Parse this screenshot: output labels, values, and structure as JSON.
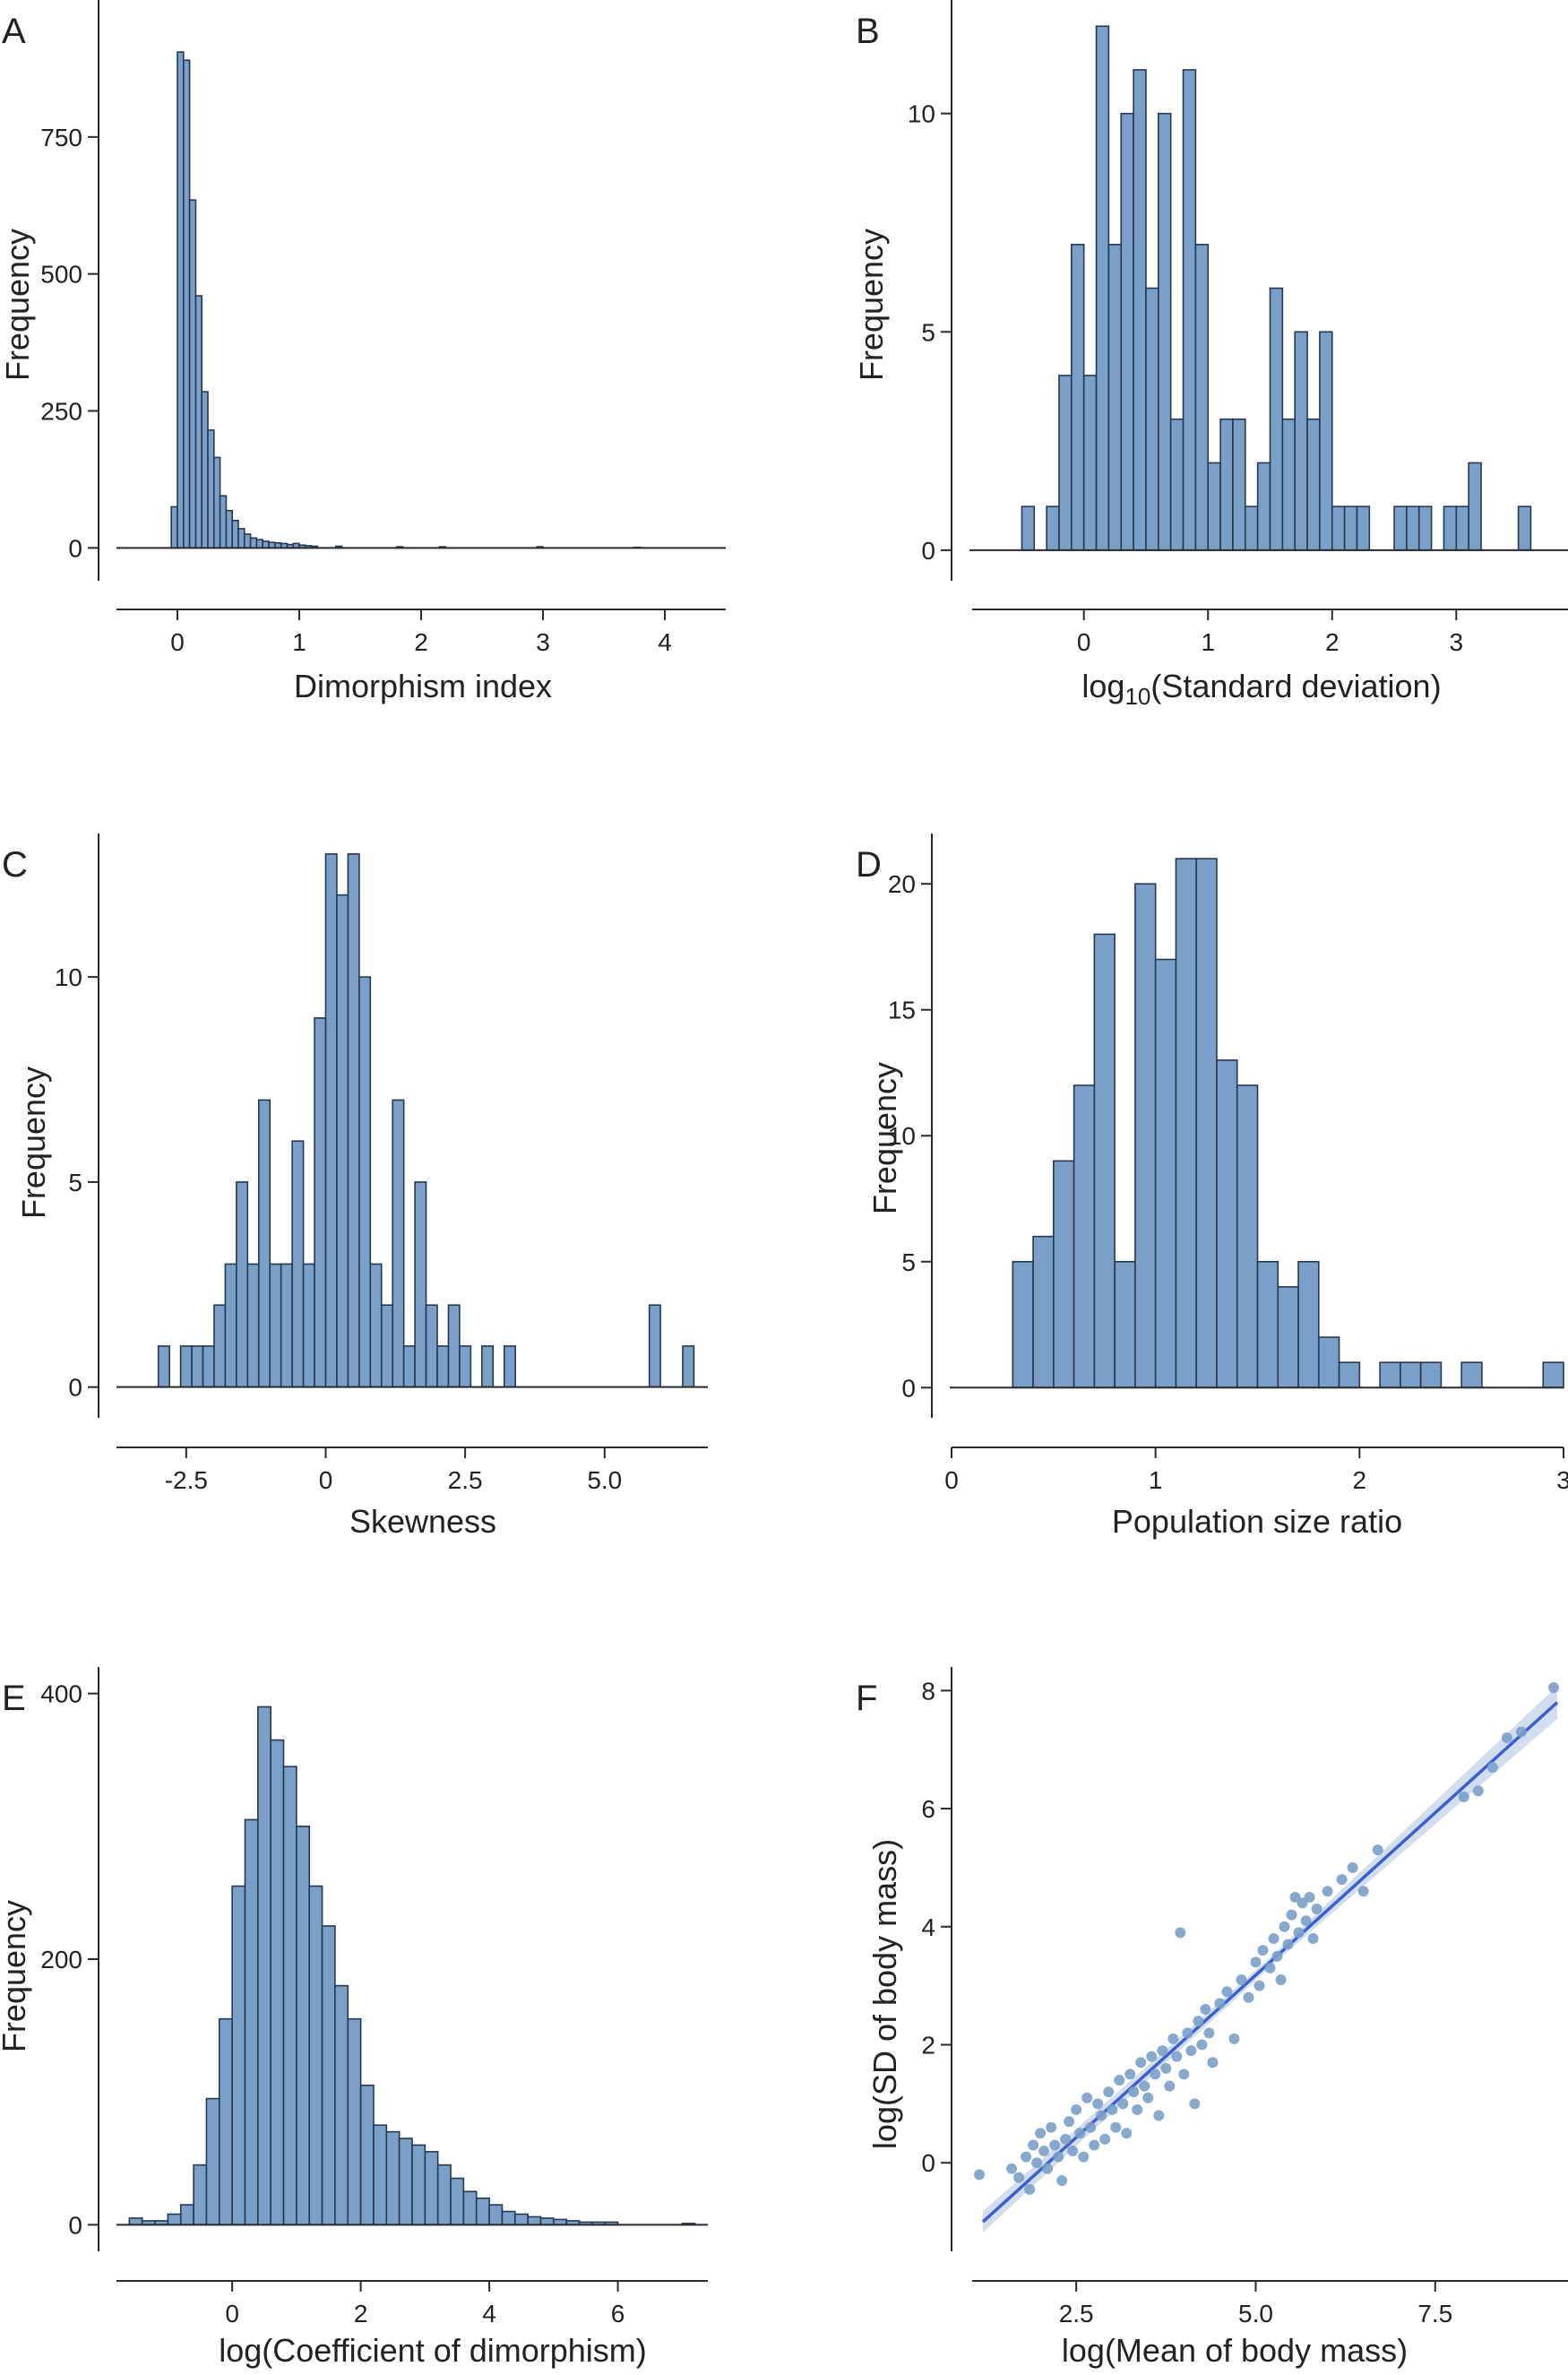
{
  "colors": {
    "bar_fill": "#7aa0c9",
    "bar_stroke": "#26384f",
    "point": "#7aa0c9",
    "fit_line": "#3a5fd0",
    "ci_band": "#c3d2ea"
  },
  "chart_data": [
    {
      "panel": "A",
      "type": "bar",
      "xlabel": "Dimorphism index",
      "ylabel": "Frequency",
      "xlim": [
        -0.5,
        4.5
      ],
      "ylim": [
        -60,
        1000
      ],
      "xticks": [
        0,
        1,
        2,
        3,
        4
      ],
      "xtick_labels": [
        "0",
        "1",
        "2",
        "3",
        "4"
      ],
      "yticks": [
        0,
        250,
        500,
        750
      ],
      "ytick_labels": [
        "0",
        "250",
        "500",
        "750"
      ],
      "bin_width": 0.05,
      "bin_starts": [
        -0.05,
        0,
        0.05,
        0.1,
        0.15,
        0.2,
        0.25,
        0.3,
        0.35,
        0.4,
        0.45,
        0.5,
        0.55,
        0.6,
        0.65,
        0.7,
        0.75,
        0.8,
        0.85,
        0.9,
        0.95,
        1.0,
        1.05,
        1.1,
        1.3,
        1.8,
        2.15,
        2.95,
        3.75
      ],
      "values": [
        75,
        905,
        890,
        635,
        460,
        285,
        215,
        165,
        95,
        68,
        50,
        35,
        25,
        18,
        15,
        12,
        10,
        9,
        8,
        6,
        8,
        5,
        4,
        3,
        3,
        2,
        2,
        2,
        1
      ]
    },
    {
      "panel": "B",
      "type": "bar",
      "xlabel_parts": [
        "log",
        "10",
        "(Standard deviation)"
      ],
      "ylabel": "Frequency",
      "xlim": [
        -0.9,
        3.9
      ],
      "ylim": [
        -0.7,
        12.6
      ],
      "xticks": [
        0,
        1,
        2,
        3
      ],
      "xtick_labels": [
        "0",
        "1",
        "2",
        "3"
      ],
      "yticks": [
        0,
        5,
        10
      ],
      "ytick_labels": [
        "0",
        "5",
        "10"
      ],
      "bin_width": 0.1,
      "bin_starts": [
        -0.5,
        -0.3,
        -0.2,
        -0.1,
        0.0,
        0.1,
        0.2,
        0.3,
        0.4,
        0.5,
        0.6,
        0.7,
        0.8,
        0.9,
        1.0,
        1.1,
        1.2,
        1.3,
        1.4,
        1.5,
        1.6,
        1.7,
        1.8,
        1.9,
        2.0,
        2.1,
        2.2,
        2.5,
        2.6,
        2.7,
        2.9,
        3.0,
        3.1,
        3.5
      ],
      "values": [
        1,
        1,
        4,
        7,
        4,
        12,
        7,
        10,
        11,
        6,
        10,
        3,
        11,
        7,
        2,
        3,
        3,
        1,
        2,
        6,
        3,
        5,
        3,
        5,
        1,
        1,
        1,
        1,
        1,
        1,
        1,
        1,
        2,
        1
      ]
    },
    {
      "panel": "C",
      "type": "bar",
      "xlabel": "Skewness",
      "ylabel": "Frequency",
      "xlim": [
        -3.75,
        6.85
      ],
      "ylim": [
        -0.75,
        13.5
      ],
      "xticks": [
        -2.5,
        0,
        2.5,
        5.0
      ],
      "xtick_labels": [
        "-2.5",
        "0",
        "2.5",
        "5.0"
      ],
      "yticks": [
        0,
        5,
        10
      ],
      "ytick_labels": [
        "0",
        "5",
        "10"
      ],
      "bin_width": 0.2,
      "bin_starts": [
        -3.0,
        -2.6,
        -2.4,
        -2.2,
        -2.0,
        -1.8,
        -1.6,
        -1.4,
        -1.2,
        -1.0,
        -0.8,
        -0.6,
        -0.4,
        -0.2,
        0.0,
        0.2,
        0.4,
        0.6,
        0.8,
        1.0,
        1.2,
        1.4,
        1.6,
        1.8,
        2.0,
        2.2,
        2.4,
        2.8,
        3.2,
        5.8,
        6.4
      ],
      "values": [
        1,
        1,
        1,
        1,
        2,
        3,
        5,
        3,
        7,
        3,
        3,
        6,
        3,
        9,
        13,
        12,
        13,
        10,
        3,
        2,
        7,
        1,
        5,
        2,
        1,
        2,
        1,
        1,
        1,
        2,
        1
      ]
    },
    {
      "panel": "D",
      "type": "bar",
      "xlabel": "Population size ratio",
      "ylabel": "Frequency",
      "xlim": [
        0,
        3
      ],
      "ylim": [
        -1.2,
        22
      ],
      "xticks": [
        0,
        1,
        2,
        3
      ],
      "xtick_labels": [
        "0",
        "1",
        "2",
        "3"
      ],
      "yticks": [
        0,
        5,
        10,
        15,
        20
      ],
      "ytick_labels": [
        "0",
        "5",
        "10",
        "15",
        "20"
      ],
      "bin_width": 0.1,
      "bin_starts": [
        0.3,
        0.4,
        0.5,
        0.6,
        0.7,
        0.8,
        0.9,
        1.0,
        1.1,
        1.2,
        1.3,
        1.4,
        1.5,
        1.6,
        1.7,
        1.8,
        1.9,
        2.1,
        2.2,
        2.3,
        2.5,
        2.9
      ],
      "values": [
        5,
        6,
        9,
        12,
        18,
        5,
        20,
        17,
        21,
        21,
        13,
        12,
        5,
        4,
        5,
        2,
        1,
        1,
        1,
        1,
        1,
        1
      ]
    },
    {
      "panel": "E",
      "type": "bar",
      "xlabel": "log(Coefficient of dimorphism)",
      "ylabel": "Frequency",
      "xlim": [
        -1.8,
        7.4
      ],
      "ylim": [
        -20,
        420
      ],
      "xticks": [
        0,
        2,
        4,
        6
      ],
      "xtick_labels": [
        "0",
        "2",
        "4",
        "6"
      ],
      "yticks": [
        0,
        200,
        400
      ],
      "ytick_labels": [
        "0",
        "200",
        "400"
      ],
      "bin_width": 0.2,
      "bin_starts": [
        -1.6,
        -1.4,
        -1.2,
        -1.0,
        -0.8,
        -0.6,
        -0.4,
        -0.2,
        0.0,
        0.2,
        0.4,
        0.6,
        0.8,
        1.0,
        1.2,
        1.4,
        1.6,
        1.8,
        2.0,
        2.2,
        2.4,
        2.6,
        2.8,
        3.0,
        3.2,
        3.4,
        3.6,
        3.8,
        4.0,
        4.2,
        4.4,
        4.6,
        4.8,
        5.0,
        5.2,
        5.4,
        5.6,
        5.8,
        7.0
      ],
      "values": [
        5,
        3,
        3,
        8,
        15,
        45,
        95,
        155,
        255,
        305,
        390,
        365,
        345,
        300,
        255,
        225,
        180,
        155,
        105,
        75,
        70,
        65,
        60,
        55,
        45,
        35,
        25,
        20,
        15,
        10,
        8,
        6,
        5,
        4,
        3,
        2,
        2,
        2,
        1
      ]
    },
    {
      "panel": "F",
      "type": "scatter",
      "xlabel": "log(Mean of body mass)",
      "ylabel": "log(SD of body mass)",
      "xlim": [
        1.05,
        9.35
      ],
      "ylim": [
        -1.5,
        8.4
      ],
      "xticks": [
        2.5,
        5.0,
        7.5
      ],
      "xtick_labels": [
        "2.5",
        "5.0",
        "7.5"
      ],
      "yticks": [
        0,
        2,
        4,
        6,
        8
      ],
      "ytick_labels": [
        "0",
        "2",
        "4",
        "6",
        "8"
      ],
      "fit": {
        "x": [
          1.2,
          9.2
        ],
        "y": [
          -1.0,
          7.8
        ],
        "ci_halfwidth": [
          0.18,
          0.08,
          0.28
        ]
      },
      "points": [
        [
          1.15,
          -0.2
        ],
        [
          1.6,
          -0.1
        ],
        [
          1.7,
          -0.25
        ],
        [
          1.8,
          0.1
        ],
        [
          1.85,
          -0.45
        ],
        [
          1.9,
          0.3
        ],
        [
          1.95,
          0.0
        ],
        [
          2.0,
          0.5
        ],
        [
          2.05,
          0.2
        ],
        [
          2.1,
          -0.1
        ],
        [
          2.15,
          0.6
        ],
        [
          2.2,
          0.3
        ],
        [
          2.25,
          0.1
        ],
        [
          2.3,
          -0.3
        ],
        [
          2.35,
          0.4
        ],
        [
          2.4,
          0.7
        ],
        [
          2.45,
          0.2
        ],
        [
          2.5,
          0.9
        ],
        [
          2.55,
          0.5
        ],
        [
          2.6,
          0.1
        ],
        [
          2.65,
          1.1
        ],
        [
          2.7,
          0.6
        ],
        [
          2.75,
          0.3
        ],
        [
          2.8,
          1.0
        ],
        [
          2.85,
          0.8
        ],
        [
          2.9,
          0.4
        ],
        [
          2.95,
          1.2
        ],
        [
          3.0,
          0.9
        ],
        [
          3.05,
          0.6
        ],
        [
          3.1,
          1.4
        ],
        [
          3.15,
          1.0
        ],
        [
          3.2,
          0.5
        ],
        [
          3.25,
          1.5
        ],
        [
          3.3,
          1.2
        ],
        [
          3.35,
          0.9
        ],
        [
          3.4,
          1.7
        ],
        [
          3.45,
          1.3
        ],
        [
          3.5,
          1.1
        ],
        [
          3.55,
          1.8
        ],
        [
          3.6,
          1.5
        ],
        [
          3.65,
          0.8
        ],
        [
          3.7,
          1.9
        ],
        [
          3.75,
          1.6
        ],
        [
          3.8,
          1.3
        ],
        [
          3.85,
          2.1
        ],
        [
          3.9,
          1.8
        ],
        [
          3.95,
          3.9
        ],
        [
          4.0,
          1.5
        ],
        [
          4.05,
          2.2
        ],
        [
          4.1,
          1.9
        ],
        [
          4.15,
          1.0
        ],
        [
          4.2,
          2.4
        ],
        [
          4.25,
          2.0
        ],
        [
          4.3,
          2.6
        ],
        [
          4.35,
          2.2
        ],
        [
          4.4,
          1.7
        ],
        [
          4.5,
          2.7
        ],
        [
          4.6,
          2.9
        ],
        [
          4.7,
          2.1
        ],
        [
          4.8,
          3.1
        ],
        [
          4.9,
          2.8
        ],
        [
          5.0,
          3.4
        ],
        [
          5.05,
          3.0
        ],
        [
          5.1,
          3.6
        ],
        [
          5.2,
          3.3
        ],
        [
          5.25,
          3.8
        ],
        [
          5.3,
          3.5
        ],
        [
          5.35,
          3.1
        ],
        [
          5.4,
          4.0
        ],
        [
          5.45,
          3.7
        ],
        [
          5.5,
          4.2
        ],
        [
          5.55,
          4.5
        ],
        [
          5.6,
          3.9
        ],
        [
          5.65,
          4.4
        ],
        [
          5.7,
          4.1
        ],
        [
          5.75,
          4.5
        ],
        [
          5.8,
          3.8
        ],
        [
          5.85,
          4.3
        ],
        [
          6.0,
          4.6
        ],
        [
          6.2,
          4.8
        ],
        [
          6.35,
          5.0
        ],
        [
          6.5,
          4.6
        ],
        [
          6.7,
          5.3
        ],
        [
          7.9,
          6.2
        ],
        [
          8.1,
          6.3
        ],
        [
          8.3,
          6.7
        ],
        [
          8.5,
          7.2
        ],
        [
          8.7,
          7.3
        ],
        [
          9.15,
          8.05
        ]
      ]
    }
  ]
}
